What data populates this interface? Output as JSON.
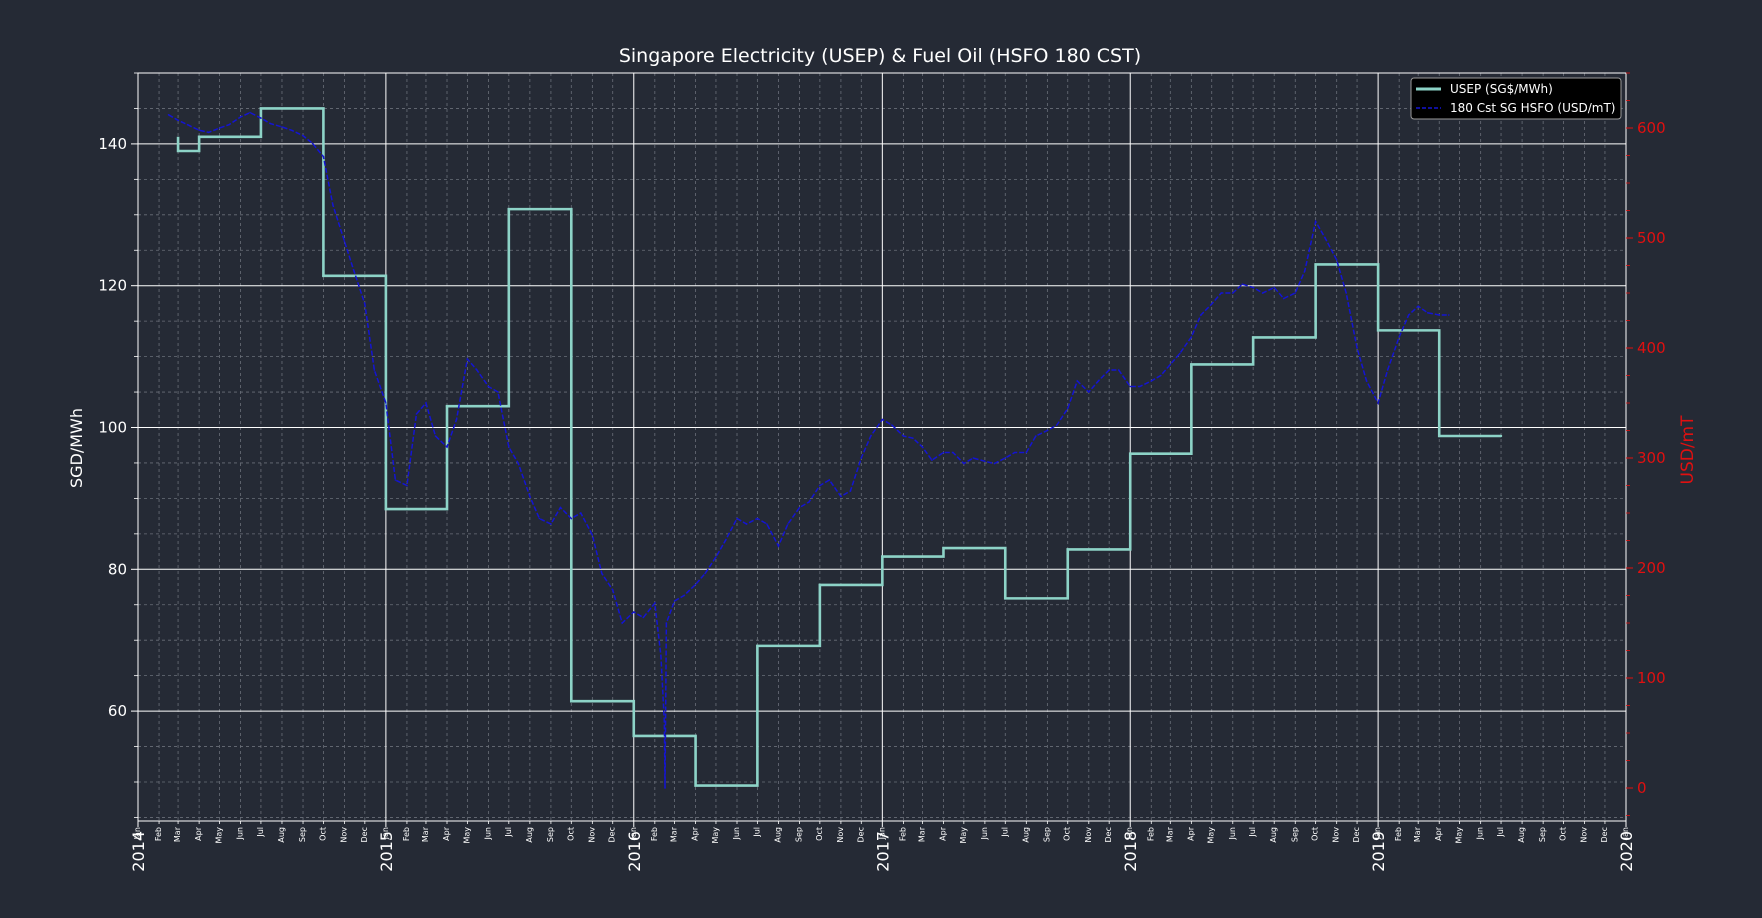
{
  "colors": {
    "background": "#252a35",
    "text": "#ffffff",
    "usep": "#8dd3c7",
    "hsfo": "#1414d2",
    "right_axis": "#e01010"
  },
  "chart_data": {
    "type": "line",
    "title": "Singapore Electricity (USEP) & Fuel Oil (HSFO 180 CST)",
    "ylabel": "SGD/MWh",
    "y2label": "USD/mT",
    "xlim": [
      "2014-01-01",
      "2020-01-01"
    ],
    "ylim": [
      44.5,
      150
    ],
    "y2lim": [
      -30,
      650
    ],
    "year_ticks": [
      "2014",
      "2015",
      "2016",
      "2017",
      "2018",
      "2019",
      "2020"
    ],
    "month_ticks": [
      "Feb",
      "Mar",
      "Apr",
      "May",
      "Jun",
      "Jul",
      "Aug",
      "Sep",
      "Oct",
      "Nov",
      "Dec"
    ],
    "y_ticks": [
      60,
      80,
      100,
      120,
      140
    ],
    "y_ticks_labels": [
      "60",
      "80",
      "100",
      "120",
      "140"
    ],
    "y2_ticks": [
      0,
      100,
      200,
      300,
      400,
      500,
      600
    ],
    "y2_ticks_labels": [
      "0",
      "100",
      "200",
      "300",
      "400",
      "500",
      "600"
    ],
    "grid": true,
    "legend": "top-right",
    "series": [
      {
        "name": "USEP (SG$/MWh)",
        "axis": "left",
        "style": "step",
        "x": [
          "2014-03-01",
          "2014-04-01",
          "2014-07-01",
          "2014-10-01",
          "2015-01-01",
          "2015-04-01",
          "2015-07-01",
          "2015-10-01",
          "2016-01-01",
          "2016-04-01",
          "2016-07-01",
          "2016-10-01",
          "2017-01-01",
          "2017-04-01",
          "2017-07-01",
          "2017-10-01",
          "2018-01-01",
          "2018-04-01",
          "2018-07-01",
          "2018-10-01",
          "2019-01-01",
          "2019-04-01",
          "2019-07-01"
        ],
        "values": [
          139,
          141,
          145,
          121.4,
          88.5,
          103,
          130.8,
          61.4,
          56.5,
          49.5,
          69.2,
          77.8,
          81.8,
          83,
          75.9,
          82.8,
          96.3,
          108.9,
          112.7,
          123,
          113.7,
          98.8,
          98.8
        ],
        "lead": [
          [
            "2014-03-01",
            139
          ],
          [
            "2014-03-01",
            141
          ]
        ]
      },
      {
        "name": "180 Cst SG HSFO (USD/mT)",
        "axis": "right",
        "style": "dashed",
        "x": [
          "2014-02-15",
          "2014-03-01",
          "2014-03-15",
          "2014-04-01",
          "2014-04-15",
          "2014-05-01",
          "2014-05-15",
          "2014-06-01",
          "2014-06-15",
          "2014-07-01",
          "2014-07-15",
          "2014-08-01",
          "2014-08-15",
          "2014-09-01",
          "2014-09-15",
          "2014-10-01",
          "2014-10-15",
          "2014-11-01",
          "2014-11-15",
          "2014-12-01",
          "2014-12-15",
          "2015-01-01",
          "2015-01-15",
          "2015-02-01",
          "2015-02-15",
          "2015-03-01",
          "2015-03-15",
          "2015-04-01",
          "2015-04-15",
          "2015-05-01",
          "2015-05-15",
          "2015-06-01",
          "2015-06-15",
          "2015-07-01",
          "2015-07-15",
          "2015-08-01",
          "2015-08-15",
          "2015-09-01",
          "2015-09-15",
          "2015-10-01",
          "2015-10-15",
          "2015-11-01",
          "2015-11-15",
          "2015-12-01",
          "2015-12-15",
          "2016-01-01",
          "2016-01-15",
          "2016-02-01",
          "2016-02-10",
          "2016-02-15",
          "2016-02-16",
          "2016-02-18",
          "2016-03-01",
          "2016-03-15",
          "2016-04-01",
          "2016-04-15",
          "2016-05-01",
          "2016-05-15",
          "2016-06-01",
          "2016-06-15",
          "2016-07-01",
          "2016-07-15",
          "2016-08-01",
          "2016-08-15",
          "2016-09-01",
          "2016-09-15",
          "2016-10-01",
          "2016-10-15",
          "2016-11-01",
          "2016-11-15",
          "2016-12-01",
          "2016-12-15",
          "2017-01-01",
          "2017-01-15",
          "2017-02-01",
          "2017-02-15",
          "2017-03-01",
          "2017-03-15",
          "2017-04-01",
          "2017-04-15",
          "2017-05-01",
          "2017-05-15",
          "2017-06-01",
          "2017-06-15",
          "2017-07-01",
          "2017-07-15",
          "2017-08-01",
          "2017-08-15",
          "2017-09-01",
          "2017-09-15",
          "2017-10-01",
          "2017-10-15",
          "2017-11-01",
          "2017-11-15",
          "2017-12-01",
          "2017-12-15",
          "2018-01-01",
          "2018-01-15",
          "2018-02-01",
          "2018-02-15",
          "2018-03-01",
          "2018-03-15",
          "2018-04-01",
          "2018-04-15",
          "2018-05-01",
          "2018-05-15",
          "2018-06-01",
          "2018-06-15",
          "2018-07-01",
          "2018-07-15",
          "2018-08-01",
          "2018-08-15",
          "2018-09-01",
          "2018-09-15",
          "2018-10-01",
          "2018-10-15",
          "2018-11-01",
          "2018-11-15",
          "2018-12-01",
          "2018-12-15",
          "2019-01-01",
          "2019-01-15",
          "2019-02-01",
          "2019-02-15",
          "2019-03-01",
          "2019-03-15",
          "2019-04-01",
          "2019-04-15"
        ],
        "values": [
          612,
          607,
          603,
          598,
          596,
          600,
          603,
          610,
          614,
          609,
          604,
          601,
          598,
          593,
          586,
          574,
          530,
          497,
          470,
          440,
          380,
          350,
          280,
          275,
          340,
          350,
          320,
          310,
          335,
          390,
          380,
          365,
          360,
          310,
          295,
          265,
          245,
          240,
          255,
          245,
          250,
          230,
          195,
          180,
          150,
          160,
          155,
          168,
          120,
          60,
          0,
          150,
          170,
          175,
          185,
          195,
          210,
          225,
          245,
          240,
          245,
          240,
          220,
          240,
          255,
          260,
          275,
          280,
          265,
          270,
          300,
          320,
          335,
          330,
          320,
          318,
          310,
          298,
          305,
          305,
          295,
          300,
          297,
          295,
          300,
          305,
          305,
          320,
          325,
          330,
          345,
          370,
          360,
          370,
          380,
          380,
          365,
          365,
          370,
          375,
          385,
          395,
          410,
          430,
          440,
          450,
          450,
          458,
          455,
          450,
          455,
          445,
          450,
          470,
          515,
          500,
          480,
          450,
          400,
          370,
          350,
          380,
          410,
          430,
          438,
          432,
          430,
          430
        ]
      }
    ]
  }
}
